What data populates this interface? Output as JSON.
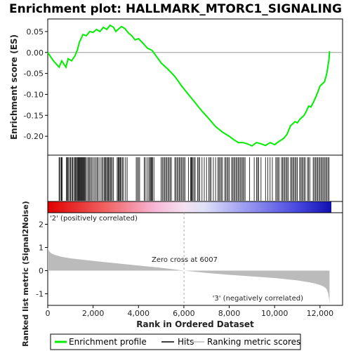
{
  "title": "Enrichment plot: HALLMARK_MTORC1_SIGNALING",
  "xlabel": "Rank in Ordered Dataset",
  "ylabel_top": "Enrichment score (ES)",
  "ylabel_bottom": "Ranked list metric (Signal2Noise)",
  "zero_cross_label": "Zero cross at 6007",
  "pos_label": "'2' (positively correlated)",
  "neg_label": "'3' (negatively correlated)",
  "colors": {
    "es_line": "#00ee00",
    "pos_label": "#dd0000",
    "neg_label": "#0000cc",
    "metric_fill": "#bbbbbb"
  },
  "legend": {
    "es": "Enrichment profile",
    "hits": "Hits",
    "metric": "Ranking metric scores"
  },
  "chart_data": {
    "type": "line",
    "n_genes": 12500,
    "zero_cross": 6007,
    "es_ylim": [
      -0.245,
      0.08
    ],
    "es_yticks": [
      0.05,
      0.0,
      -0.05,
      -0.1,
      -0.15,
      -0.2
    ],
    "es_yticklabels": [
      "0.05",
      "0.00",
      "-0.05",
      "-0.10",
      "-0.15",
      "-0.20"
    ],
    "metric_ylim": [
      -1.5,
      2.5
    ],
    "metric_yticks": [
      2,
      1,
      0,
      -1
    ],
    "metric_yticklabels": [
      "2",
      "1",
      "0",
      "-1"
    ],
    "xticks": [
      0,
      2000,
      4000,
      6000,
      8000,
      10000,
      12000
    ],
    "xticklabels": [
      "0",
      "2,000",
      "4,000",
      "6,000",
      "8,000",
      "10,000",
      "12,000"
    ],
    "es_profile": {
      "x": [
        0,
        250,
        500,
        620,
        800,
        900,
        1050,
        1200,
        1300,
        1400,
        1550,
        1700,
        1850,
        2000,
        2150,
        2300,
        2450,
        2600,
        2750,
        2900,
        3000,
        3100,
        3250,
        3400,
        3550,
        3700,
        3850,
        4000,
        4200,
        4400,
        4600,
        4800,
        5000,
        5300,
        5600,
        5900,
        6200,
        6500,
        6800,
        7100,
        7400,
        7700,
        8000,
        8200,
        8400,
        8600,
        8800,
        9000,
        9200,
        9400,
        9600,
        9800,
        10000,
        10200,
        10400,
        10550,
        10700,
        10800,
        10900,
        11000,
        11100,
        11200,
        11300,
        11400,
        11500,
        11600,
        11700,
        11800,
        11900,
        12000,
        12100,
        12200,
        12300,
        12400,
        12420
      ],
      "y": [
        0.0,
        -0.02,
        -0.035,
        -0.02,
        -0.035,
        -0.015,
        -0.02,
        -0.008,
        0.005,
        0.025,
        0.043,
        0.04,
        0.05,
        0.048,
        0.055,
        0.05,
        0.06,
        0.055,
        0.065,
        0.06,
        0.05,
        0.055,
        0.062,
        0.057,
        0.047,
        0.04,
        0.03,
        0.033,
        0.022,
        0.01,
        0.005,
        -0.01,
        -0.025,
        -0.04,
        -0.057,
        -0.08,
        -0.1,
        -0.12,
        -0.14,
        -0.158,
        -0.177,
        -0.19,
        -0.2,
        -0.208,
        -0.215,
        -0.215,
        -0.218,
        -0.223,
        -0.215,
        -0.218,
        -0.222,
        -0.215,
        -0.22,
        -0.212,
        -0.205,
        -0.195,
        -0.175,
        -0.17,
        -0.165,
        -0.168,
        -0.16,
        -0.155,
        -0.15,
        -0.14,
        -0.128,
        -0.13,
        -0.12,
        -0.108,
        -0.095,
        -0.08,
        -0.075,
        -0.07,
        -0.05,
        -0.015,
        0.003
      ]
    },
    "metric_profile": {
      "x": [
        0,
        60,
        150,
        300,
        600,
        1000,
        2000,
        3000,
        4000,
        5000,
        6007,
        7000,
        8000,
        9000,
        10000,
        11000,
        11500,
        11800,
        12000,
        12150,
        12250,
        12300,
        12350,
        12400,
        12420
      ],
      "y": [
        1.0,
        0.85,
        0.75,
        0.68,
        0.6,
        0.53,
        0.42,
        0.32,
        0.22,
        0.12,
        0.0,
        -0.1,
        -0.18,
        -0.25,
        -0.32,
        -0.42,
        -0.5,
        -0.56,
        -0.62,
        -0.68,
        -0.75,
        -0.82,
        -0.95,
        -1.2,
        -1.4
      ]
    },
    "hits": [
      500,
      530,
      590,
      610,
      640,
      820,
      860,
      880,
      920,
      980,
      1010,
      1060,
      1100,
      1150,
      1200,
      1230,
      1260,
      1300,
      1330,
      1360,
      1390,
      1420,
      1450,
      1480,
      1500,
      1530,
      1560,
      1590,
      1620,
      1660,
      1700,
      1760,
      1810,
      1850,
      1900,
      1950,
      2010,
      2070,
      2130,
      2180,
      2230,
      2300,
      2380,
      2420,
      2480,
      2520,
      2560,
      2600,
      2640,
      2680,
      2720,
      2760,
      2800,
      2850,
      2900,
      3060,
      3100,
      3130,
      3160,
      3200,
      3240,
      3290,
      3340,
      3430,
      3500,
      3900,
      3950,
      4000,
      4050,
      4250,
      4300,
      4380,
      4450,
      4500,
      4520,
      4560,
      4600,
      4620,
      4680,
      5000,
      5050,
      5100,
      5150,
      5200,
      5250,
      5300,
      5350,
      5400,
      5450,
      5600,
      5650,
      5700,
      5750,
      5800,
      5850,
      5900,
      5950,
      6000,
      6050,
      6200,
      6300,
      6330,
      6360,
      6400,
      6450,
      6500,
      6600,
      6650,
      6700,
      6800,
      6900,
      7000,
      7100,
      7150,
      7200,
      7300,
      7400,
      7500,
      7550,
      7600,
      7650,
      7700,
      7800,
      7850,
      7900,
      7950,
      8000,
      8100,
      8150,
      8200,
      8250,
      8300,
      8350,
      8400,
      8450,
      8500,
      8550,
      8600,
      8650,
      8700,
      8900,
      9100,
      9200,
      9250,
      9300,
      9400,
      9600,
      9700,
      9800,
      9900,
      10050,
      10100,
      10150,
      10200,
      10300,
      10350,
      10400,
      10450,
      10500,
      10550,
      10600,
      10700,
      10750,
      10800,
      10850,
      10900,
      10950,
      11000,
      11100,
      11150,
      11200,
      11250,
      11300,
      11350,
      11450,
      11500,
      11550,
      11700,
      11750,
      11800,
      11850,
      11900,
      11950,
      12000,
      12050,
      12100,
      12150,
      12200,
      12250,
      12300,
      12350,
      12400
    ]
  }
}
